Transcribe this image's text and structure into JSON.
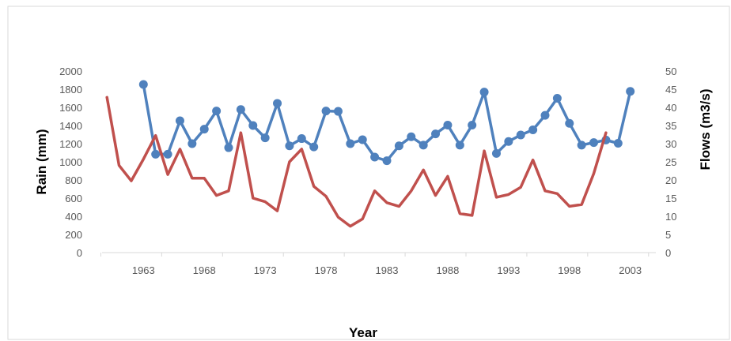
{
  "chart_data": {
    "type": "line",
    "xlabel": "Year",
    "ylabel": "Rain (mm)",
    "y2label": "Flows (m3/s)",
    "ylim": [
      0,
      2000
    ],
    "y2lim": [
      0,
      50
    ],
    "x_ticks": [
      "1963",
      "1968",
      "1973",
      "1978",
      "1983",
      "1988",
      "1993",
      "1998",
      "2003"
    ],
    "y_ticks": [
      "0",
      "200",
      "400",
      "600",
      "800",
      "1000",
      "1200",
      "1400",
      "1600",
      "1800",
      "2000"
    ],
    "y2_ticks": [
      "0",
      "5",
      "10",
      "15",
      "20",
      "25",
      "30",
      "35",
      "40",
      "45",
      "50"
    ],
    "grid": false,
    "series": [
      {
        "axis": "right",
        "color": "#4f81bd",
        "markers": true,
        "points": [
          {
            "x": 1963,
            "y": 46.3
          },
          {
            "x": 1964,
            "y": 27.1
          },
          {
            "x": 1965,
            "y": 27.1
          },
          {
            "x": 1966,
            "y": 36.3
          },
          {
            "x": 1967,
            "y": 30.0
          },
          {
            "x": 1968,
            "y": 34.0
          },
          {
            "x": 1969,
            "y": 39.0
          },
          {
            "x": 1970,
            "y": 28.9
          },
          {
            "x": 1971,
            "y": 39.4
          },
          {
            "x": 1972,
            "y": 35.0
          },
          {
            "x": 1973,
            "y": 31.6
          },
          {
            "x": 1974,
            "y": 41.1
          },
          {
            "x": 1975,
            "y": 29.4
          },
          {
            "x": 1976,
            "y": 31.4
          },
          {
            "x": 1977,
            "y": 29.1
          },
          {
            "x": 1978,
            "y": 39.0
          },
          {
            "x": 1979,
            "y": 38.9
          },
          {
            "x": 1980,
            "y": 30.0
          },
          {
            "x": 1981,
            "y": 31.1
          },
          {
            "x": 1982,
            "y": 26.3
          },
          {
            "x": 1983,
            "y": 25.3
          },
          {
            "x": 1984,
            "y": 29.4
          },
          {
            "x": 1985,
            "y": 31.9
          },
          {
            "x": 1986,
            "y": 29.6
          },
          {
            "x": 1987,
            "y": 32.7
          },
          {
            "x": 1988,
            "y": 35.1
          },
          {
            "x": 1989,
            "y": 29.6
          },
          {
            "x": 1990,
            "y": 35.1
          },
          {
            "x": 1991,
            "y": 44.2
          },
          {
            "x": 1992,
            "y": 27.3
          },
          {
            "x": 1993,
            "y": 30.6
          },
          {
            "x": 1994,
            "y": 32.4
          },
          {
            "x": 1995,
            "y": 33.8
          },
          {
            "x": 1996,
            "y": 37.8
          },
          {
            "x": 1997,
            "y": 42.5
          },
          {
            "x": 1998,
            "y": 35.6
          },
          {
            "x": 1999,
            "y": 29.6
          },
          {
            "x": 2000,
            "y": 30.3
          },
          {
            "x": 2001,
            "y": 31.0
          },
          {
            "x": 2002,
            "y": 30.1
          },
          {
            "x": 2003,
            "y": 44.4
          }
        ]
      },
      {
        "axis": "left",
        "color": "#c0504d",
        "markers": false,
        "points": [
          {
            "x": 1960,
            "y": 1710
          },
          {
            "x": 1961,
            "y": 960
          },
          {
            "x": 1962,
            "y": 790
          },
          {
            "x": 1963,
            "y": 1030
          },
          {
            "x": 1964,
            "y": 1290
          },
          {
            "x": 1965,
            "y": 860
          },
          {
            "x": 1966,
            "y": 1140
          },
          {
            "x": 1967,
            "y": 820
          },
          {
            "x": 1968,
            "y": 820
          },
          {
            "x": 1969,
            "y": 630
          },
          {
            "x": 1970,
            "y": 680
          },
          {
            "x": 1971,
            "y": 1320
          },
          {
            "x": 1972,
            "y": 600
          },
          {
            "x": 1973,
            "y": 560
          },
          {
            "x": 1974,
            "y": 460
          },
          {
            "x": 1975,
            "y": 1000
          },
          {
            "x": 1976,
            "y": 1140
          },
          {
            "x": 1977,
            "y": 730
          },
          {
            "x": 1978,
            "y": 620
          },
          {
            "x": 1979,
            "y": 390
          },
          {
            "x": 1980,
            "y": 290
          },
          {
            "x": 1981,
            "y": 370
          },
          {
            "x": 1982,
            "y": 680
          },
          {
            "x": 1983,
            "y": 550
          },
          {
            "x": 1984,
            "y": 510
          },
          {
            "x": 1985,
            "y": 680
          },
          {
            "x": 1986,
            "y": 910
          },
          {
            "x": 1987,
            "y": 630
          },
          {
            "x": 1988,
            "y": 840
          },
          {
            "x": 1989,
            "y": 430
          },
          {
            "x": 1990,
            "y": 410
          },
          {
            "x": 1991,
            "y": 1120
          },
          {
            "x": 1992,
            "y": 610
          },
          {
            "x": 1993,
            "y": 640
          },
          {
            "x": 1994,
            "y": 720
          },
          {
            "x": 1995,
            "y": 1020
          },
          {
            "x": 1996,
            "y": 680
          },
          {
            "x": 1997,
            "y": 650
          },
          {
            "x": 1998,
            "y": 510
          },
          {
            "x": 1999,
            "y": 530
          },
          {
            "x": 2000,
            "y": 870
          },
          {
            "x": 2001,
            "y": 1320
          }
        ]
      }
    ]
  }
}
